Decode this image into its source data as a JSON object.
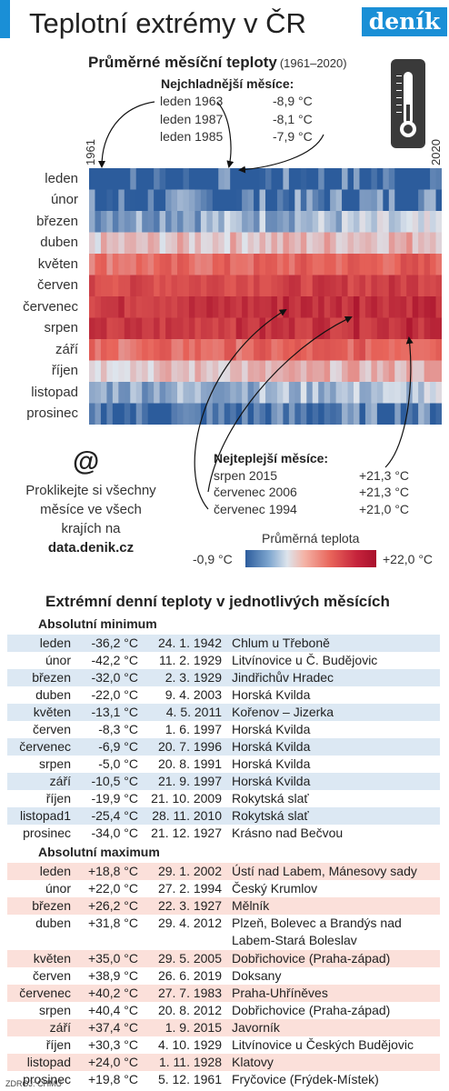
{
  "header": {
    "title": "Teplotní extrémy v ČR",
    "logo": "deník",
    "accent_color": "#1a8fd6"
  },
  "chart_heading": {
    "title": "Průměrné měsíční teploty",
    "years": "(1961–2020)"
  },
  "coldest": {
    "title": "Nejchladnější měsíce:",
    "items": [
      {
        "label": "leden 1963",
        "value": "-8,9 °C"
      },
      {
        "label": "leden 1987",
        "value": "-8,1 °C"
      },
      {
        "label": "leden 1985",
        "value": "-7,9 °C"
      }
    ]
  },
  "warmest": {
    "title": "Nejteplejší měsíce:",
    "items": [
      {
        "label": "srpen 2015",
        "value": "+21,3 °C"
      },
      {
        "label": "červenec 2006",
        "value": "+21,3 °C"
      },
      {
        "label": "červenec 1994",
        "value": "+21,0 °C"
      }
    ]
  },
  "axis": {
    "start_year": "1961",
    "end_year": "2020"
  },
  "promo": {
    "icon": "at-icon",
    "text": "Proklikejte si všechny měsíce ve všech krajích na",
    "url": "data.denik.cz"
  },
  "legend": {
    "title": "Průměrná teplota",
    "min": "-0,9 °C",
    "max": "+22,0 °C"
  },
  "chart_data": {
    "type": "heatmap",
    "title": "Průměrné měsíční teploty",
    "subtitle": "(1961–2020)",
    "x": {
      "start": 1961,
      "end": 2020
    },
    "rows": [
      "leden",
      "únor",
      "březen",
      "duben",
      "květen",
      "červen",
      "červenec",
      "srpen",
      "září",
      "říjen",
      "listopad",
      "prosinec"
    ],
    "color_scale": {
      "min": -0.9,
      "max": 22.0,
      "min_label": "-0,9 °C",
      "max_label": "+22,0 °C",
      "colors": [
        "#2c5c9c",
        "#dde4ec",
        "#e8645a",
        "#a8102c"
      ]
    },
    "highlights": {
      "coldest": [
        {
          "month": "leden",
          "year": 1963,
          "value": -8.9
        },
        {
          "month": "leden",
          "year": 1987,
          "value": -8.1
        },
        {
          "month": "leden",
          "year": 1985,
          "value": -7.9
        }
      ],
      "warmest": [
        {
          "month": "srpen",
          "year": 2015,
          "value": 21.3
        },
        {
          "month": "červenec",
          "year": 2006,
          "value": 21.3
        },
        {
          "month": "červenec",
          "year": 1994,
          "value": 21.0
        }
      ]
    }
  },
  "daily": {
    "heading": "Extrémní denní teploty v jednotlivých měsících",
    "min_title": "Absolutní minimum",
    "max_title": "Absolutní maximum",
    "min_color": "#dce8f3",
    "max_color": "#fbe0da",
    "minimum": [
      {
        "month": "leden",
        "temp": "-36,2 °C",
        "date": "24. 1. 1942",
        "place": "Chlum u Třeboně"
      },
      {
        "month": "únor",
        "temp": "-42,2 °C",
        "date": "11. 2. 1929",
        "place": "Litvínovice u Č. Budějovic"
      },
      {
        "month": "březen",
        "temp": "-32,0 °C",
        "date": "2. 3. 1929",
        "place": "Jindřichův Hradec"
      },
      {
        "month": "duben",
        "temp": "-22,0 °C",
        "date": "9. 4. 2003",
        "place": "Horská Kvilda"
      },
      {
        "month": "květen",
        "temp": "-13,1 °C",
        "date": "4. 5. 2011",
        "place": "Kořenov – Jizerka"
      },
      {
        "month": "červen",
        "temp": "-8,3 °C",
        "date": "1. 6. 1997",
        "place": "Horská Kvilda"
      },
      {
        "month": "červenec",
        "temp": "-6,9 °C",
        "date": "20. 7. 1996",
        "place": "Horská Kvilda"
      },
      {
        "month": "srpen",
        "temp": "-5,0 °C",
        "date": "20. 8. 1991",
        "place": "Horská Kvilda"
      },
      {
        "month": "září",
        "temp": "-10,5 °C",
        "date": "21. 9. 1997",
        "place": "Horská Kvilda"
      },
      {
        "month": "říjen",
        "temp": "-19,9 °C",
        "date": "21. 10. 2009",
        "place": "Rokytská slať"
      },
      {
        "month": "listopad1",
        "temp": "-25,4 °C",
        "date": "28. 11. 2010",
        "place": "Rokytská slať"
      },
      {
        "month": "prosinec",
        "temp": "-34,0 °C",
        "date": "21. 12. 1927",
        "place": "Krásno nad Bečvou"
      }
    ],
    "maximum": [
      {
        "month": "leden",
        "temp": "+18,8 °C",
        "date": "29. 1. 2002",
        "place": "Ústí nad Labem, Mánesovy sady"
      },
      {
        "month": "únor",
        "temp": "+22,0 °C",
        "date": "27. 2. 1994",
        "place": "Český Krumlov"
      },
      {
        "month": "březen",
        "temp": "+26,2 °C",
        "date": "22. 3. 1927",
        "place": "Mělník"
      },
      {
        "month": "duben",
        "temp": "+31,8 °C",
        "date": "29. 4. 2012",
        "place": "Plzeň, Bolevec a Brandýs nad Labem-Stará Boleslav"
      },
      {
        "month": "květen",
        "temp": "+35,0 °C",
        "date": "29. 5. 2005",
        "place": "Dobřichovice (Praha-západ)"
      },
      {
        "month": "červen",
        "temp": "+38,9 °C",
        "date": "26. 6. 2019",
        "place": "Doksany"
      },
      {
        "month": "červenec",
        "temp": "+40,2 °C",
        "date": "27. 7. 1983",
        "place": "Praha-Uhříněves"
      },
      {
        "month": "srpen",
        "temp": "+40,4 °C",
        "date": "20. 8. 2012",
        "place": "Dobřichovice (Praha-západ)"
      },
      {
        "month": "září",
        "temp": "+37,4 °C",
        "date": "1. 9. 2015",
        "place": "Javorník"
      },
      {
        "month": "říjen",
        "temp": "+30,3 °C",
        "date": "4. 10. 1929",
        "place": "Litvínovice u Českých Budějovic"
      },
      {
        "month": "listopad",
        "temp": "+24,0 °C",
        "date": "1. 11. 1928",
        "place": "Klatovy"
      },
      {
        "month": "prosinec",
        "temp": "+19,8 °C",
        "date": "5. 12. 1961",
        "place": "Fryčovice (Frýdek-Místek)"
      }
    ]
  },
  "source": "ZDROJ: ČHMÚ"
}
